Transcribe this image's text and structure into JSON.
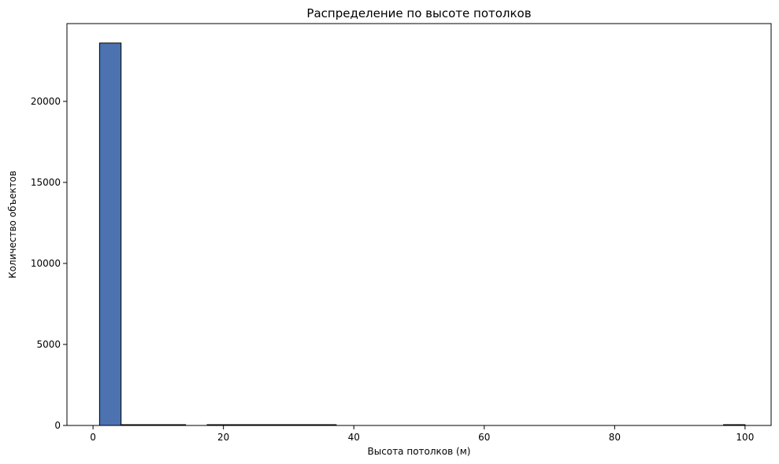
{
  "chart_data": {
    "type": "bar",
    "title": "Распределение по высоте потолков",
    "xlabel": "Высота потолков (м)",
    "ylabel": "Количество объектов",
    "xlim": [
      -4,
      104
    ],
    "ylim": [
      0,
      24800
    ],
    "xticks": [
      0,
      20,
      40,
      60,
      80,
      100
    ],
    "yticks": [
      0,
      5000,
      10000,
      15000,
      20000
    ],
    "grid": false,
    "bar_color": "#4c72b0",
    "edge_color": "#000000",
    "bins": [
      {
        "x0": 1.0,
        "x1": 4.3,
        "value": 23600
      },
      {
        "x0": 4.3,
        "x1": 7.6,
        "value": 40
      },
      {
        "x0": 7.6,
        "x1": 10.9,
        "value": 2
      },
      {
        "x0": 10.9,
        "x1": 14.2,
        "value": 1
      },
      {
        "x0": 14.2,
        "x1": 17.5,
        "value": 0
      },
      {
        "x0": 17.5,
        "x1": 20.8,
        "value": 1
      },
      {
        "x0": 20.8,
        "x1": 24.1,
        "value": 3
      },
      {
        "x0": 24.1,
        "x1": 27.4,
        "value": 20
      },
      {
        "x0": 27.4,
        "x1": 30.7,
        "value": 3
      },
      {
        "x0": 30.7,
        "x1": 34.0,
        "value": 1
      },
      {
        "x0": 34.0,
        "x1": 37.3,
        "value": 1
      },
      {
        "x0": 37.3,
        "x1": 40.6,
        "value": 0
      },
      {
        "x0": 40.6,
        "x1": 43.9,
        "value": 0
      },
      {
        "x0": 43.9,
        "x1": 47.2,
        "value": 0
      },
      {
        "x0": 47.2,
        "x1": 50.5,
        "value": 0
      },
      {
        "x0": 50.5,
        "x1": 53.8,
        "value": 0
      },
      {
        "x0": 53.8,
        "x1": 57.1,
        "value": 0
      },
      {
        "x0": 57.1,
        "x1": 60.4,
        "value": 0
      },
      {
        "x0": 60.4,
        "x1": 63.7,
        "value": 0
      },
      {
        "x0": 63.7,
        "x1": 67.0,
        "value": 0
      },
      {
        "x0": 67.0,
        "x1": 70.3,
        "value": 0
      },
      {
        "x0": 70.3,
        "x1": 73.6,
        "value": 0
      },
      {
        "x0": 73.6,
        "x1": 76.9,
        "value": 0
      },
      {
        "x0": 76.9,
        "x1": 80.2,
        "value": 0
      },
      {
        "x0": 80.2,
        "x1": 83.5,
        "value": 0
      },
      {
        "x0": 83.5,
        "x1": 86.8,
        "value": 0
      },
      {
        "x0": 86.8,
        "x1": 90.1,
        "value": 0
      },
      {
        "x0": 90.1,
        "x1": 93.4,
        "value": 0
      },
      {
        "x0": 93.4,
        "x1": 96.7,
        "value": 0
      },
      {
        "x0": 96.7,
        "x1": 100.0,
        "value": 1
      }
    ]
  }
}
